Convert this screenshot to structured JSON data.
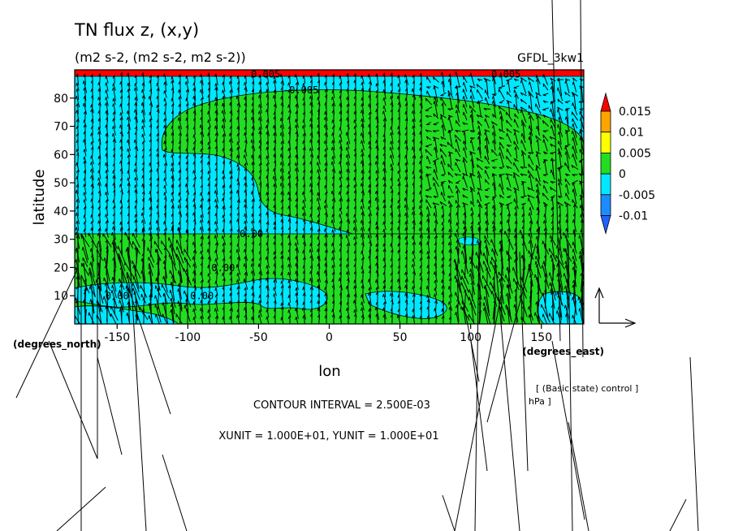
{
  "chart_data": {
    "type": "heatmap",
    "title": "TN flux z, (x,y)",
    "subtitle": "(m2 s-2, (m2 s-2, m2 s-2))",
    "model_label": "GFDL_3kw1",
    "xlabel": "lon",
    "ylabel": "latitude",
    "x_unit_label": "(degrees_east)",
    "y_unit_label": "(degrees_north)",
    "xlim": [
      -180,
      180
    ],
    "ylim": [
      0,
      90
    ],
    "x_ticks": [
      {
        "v": -150,
        "label": "-150"
      },
      {
        "v": -100,
        "label": "-100"
      },
      {
        "v": -50,
        "label": "-50"
      },
      {
        "v": 0,
        "label": "0"
      },
      {
        "v": 50,
        "label": "50"
      },
      {
        "v": 100,
        "label": "100"
      },
      {
        "v": 150,
        "label": "150"
      }
    ],
    "y_ticks": [
      {
        "v": 10,
        "label": "10"
      },
      {
        "v": 20,
        "label": "20"
      },
      {
        "v": 30,
        "label": "30"
      },
      {
        "v": 40,
        "label": "40"
      },
      {
        "v": 50,
        "label": "50"
      },
      {
        "v": 60,
        "label": "60"
      },
      {
        "v": 70,
        "label": "70"
      },
      {
        "v": 80,
        "label": "80"
      }
    ],
    "colorbar": [
      {
        "label": "-0.01",
        "color": "#1e8cff"
      },
      {
        "label": "-0.005",
        "color": "#00e8ff"
      },
      {
        "label": "0",
        "color": "#22dd22"
      },
      {
        "label": "0.005",
        "color": "#ffff00"
      },
      {
        "label": "0.01",
        "color": "#ffa500"
      },
      {
        "label": "0.015",
        "color": "#ff0000"
      }
    ],
    "colorbar_under_color": "#1e64ff",
    "contour_labels": [
      {
        "text": "0.005",
        "lon": -45,
        "lat": 87.5
      },
      {
        "text": "0.005",
        "lon": 125,
        "lat": 87.5
      },
      {
        "text": "-0.005",
        "lon": -20,
        "lat": 82
      },
      {
        "text": "0.00",
        "lon": -55,
        "lat": 31
      },
      {
        "text": "0.00",
        "lon": -75,
        "lat": 19
      },
      {
        "text": "0.00",
        "lon": -90,
        "lat": 9
      },
      {
        "text": "0.00",
        "lon": -150,
        "lat": 9
      }
    ],
    "contour_interval_text": "CONTOUR INTERVAL = 2.500E-03",
    "unit_text": "XUNIT = 1.000E+01, YUNIT = 1.000E+01",
    "experiment_text": "[ (Basic state) control ]",
    "level_text": "hPa ]",
    "grid": false
  },
  "colors": {
    "positive_fill": "#22dd22",
    "negative_fill": "#00e8ff",
    "top_band": "#ff0000",
    "vector": "#000000"
  }
}
